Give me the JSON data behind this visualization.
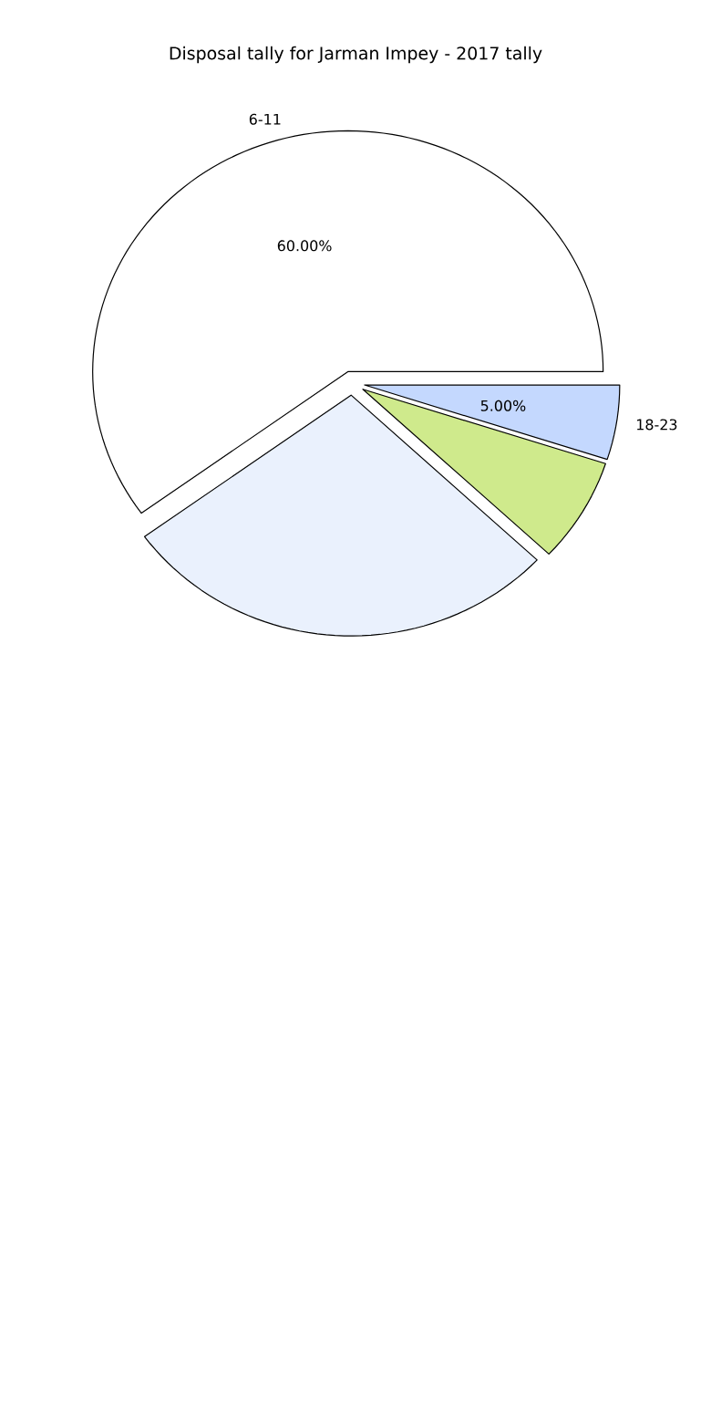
{
  "chart_data": {
    "type": "pie",
    "title": "Disposal tally for Jarman Impey - 2017 tally",
    "categories": [
      "6-11",
      null,
      null,
      "18-23"
    ],
    "values": [
      60,
      28,
      7,
      5
    ],
    "colors": [
      "#ffffff",
      "#eaf1fd",
      "#cfea8c",
      "#c4d8fe"
    ],
    "value_labels": [
      "60.00%",
      null,
      null,
      "5.00%"
    ]
  }
}
